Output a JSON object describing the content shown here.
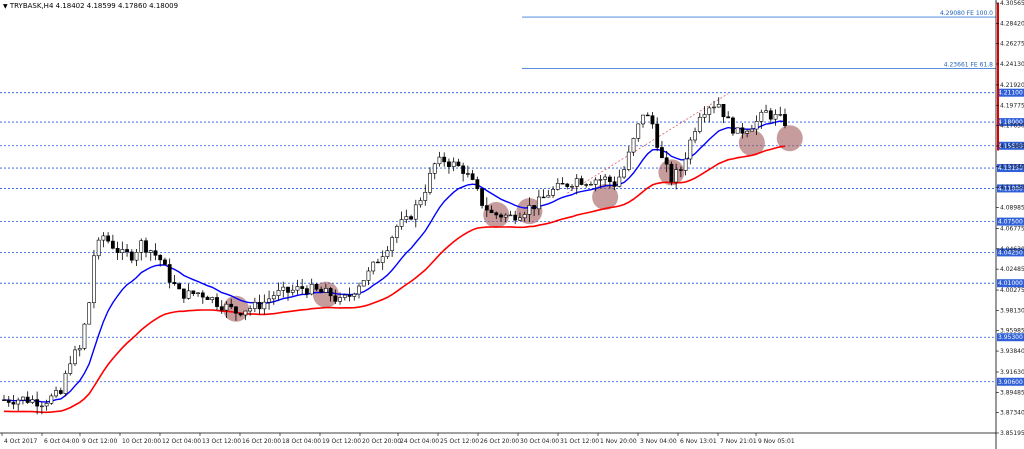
{
  "header": {
    "menu_icon": "triangle-down-icon",
    "symbol_line": "TRYBASK,H4 4.18402 4.18599 4.17860 4.18009"
  },
  "colors": {
    "bull": "#000000",
    "bear": "#000000",
    "ema_fast": "#0000ff",
    "ema_slow": "#ff0000",
    "level": "#2255dd",
    "level_label_bg": "#3060d8",
    "fib": "#3d7fd6",
    "circle": "#a05a5a",
    "price_marker": "#e00000"
  },
  "chart_data": {
    "type": "candlestick",
    "title": "",
    "symbol": "TRYBASK",
    "timeframe": "H4",
    "ylim": [
      3.85195,
      4.30565
    ],
    "y_ticks": [
      "4.30565",
      "4.28420",
      "4.26275",
      "4.24130",
      "4.21920",
      "4.19775",
      "4.17630",
      "4.15485",
      "4.13340",
      "4.11130",
      "4.08985",
      "4.06775",
      "4.04630",
      "4.02485",
      "4.00275",
      "3.98130",
      "3.95985",
      "3.93840",
      "3.91630",
      "3.89485",
      "3.87340",
      "3.85195"
    ],
    "x_ticks": [
      "4 Oct 2017",
      "6 Oct 04:00",
      "9 Oct 12:00",
      "10 Oct 20:00",
      "12 Oct 04:00",
      "13 Oct 12:00",
      "16 Oct 20:00",
      "18 Oct 04:00",
      "19 Oct 12:00",
      "20 Oct 20:00",
      "24 Oct 04:00",
      "25 Oct 12:00",
      "26 Oct 20:00",
      "30 Oct 04:00",
      "31 Oct 12:00",
      "1 Nov 20:00",
      "3 Nov 04:00",
      "6 Nov 13:01",
      "7 Nov 21:01",
      "9 Nov 05:01"
    ],
    "levels": [
      {
        "price": 4.211,
        "label": "4.21100"
      },
      {
        "price": 4.18,
        "label": "4.18000"
      },
      {
        "price": 4.155,
        "label": "4.15500"
      },
      {
        "price": 4.1315,
        "label": "4.13150"
      },
      {
        "price": 4.11,
        "label": "4.11000"
      },
      {
        "price": 4.075,
        "label": "4.07500"
      },
      {
        "price": 4.0425,
        "label": "4.04250"
      },
      {
        "price": 4.01,
        "label": "4.01000"
      },
      {
        "price": 3.953,
        "label": "3.95300"
      },
      {
        "price": 3.906,
        "label": "3.90600"
      }
    ],
    "fib_levels": [
      {
        "price": 4.2908,
        "label": "4.29080 FE 100.0"
      },
      {
        "price": 4.23661,
        "label": "4.23661 FE 61.8"
      }
    ],
    "circles": [
      0,
      0,
      0,
      0,
      0,
      0,
      0,
      0
    ]
  }
}
